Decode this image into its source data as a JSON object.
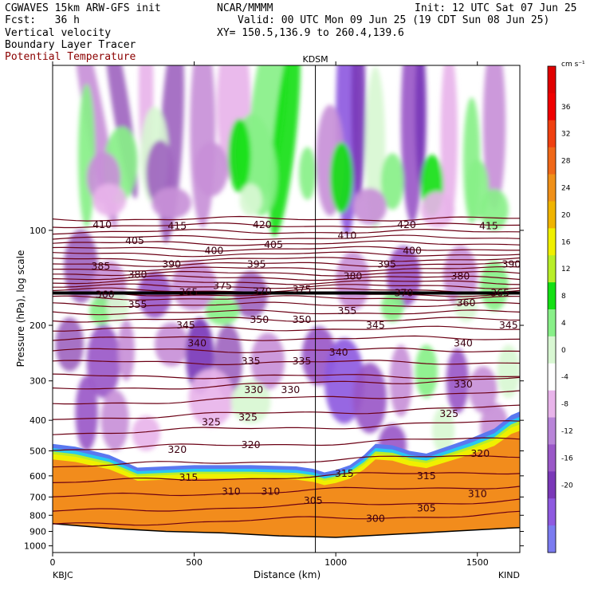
{
  "header": {
    "model": "CGWAVES 15km ARW-GFS init",
    "org": "NCAR/MMMM",
    "init": "Init: 12 UTC Sat 07 Jun 25",
    "fcst": "Fcst:   36 h",
    "valid": "Valid: 00 UTC Mon 09 Jun 25 (19 CDT Sun 08 Jun 25)",
    "field1": "Vertical velocity",
    "field2": "Boundary Layer Tracer",
    "field3": "Potential Temperature",
    "xy": "XY= 150.5,136.9 to 260.4,139.6"
  },
  "colors": {
    "theta": "#6b0014",
    "boundary": "#000000",
    "tracer": "#f28c1c"
  },
  "chart_data": {
    "type": "heatmap",
    "xlabel": "Distance (km)",
    "ylabel": "Pressure (hPa), log scale",
    "xlim": [
      0,
      1650
    ],
    "ylim": [
      1050,
      30
    ],
    "x_ticks": [
      0,
      500,
      1000,
      1500
    ],
    "y_ticks": [
      100,
      200,
      300,
      400,
      500,
      600,
      700,
      800,
      900,
      1000
    ],
    "y_scale": "log",
    "x_endpoints": {
      "left": "KBJC",
      "right": "KIND"
    },
    "marker": {
      "label": "KDSM",
      "x": 928
    },
    "colorbar": {
      "unit": "cm s⁻¹",
      "ticks": [
        36,
        32,
        28,
        24,
        20,
        16,
        12,
        8,
        4,
        0,
        -4,
        -8,
        -12,
        -16,
        -20
      ],
      "colors": [
        "#7b7bf0",
        "#8e5ae0",
        "#7a38b8",
        "#9a58c8",
        "#b884d8",
        "#e8b4ea",
        "#ffffff",
        "#d8f7d2",
        "#88f088",
        "#14e014",
        "#b8ee28",
        "#f0f000",
        "#f0b400",
        "#f09018",
        "#f06818",
        "#f04010",
        "#f00000",
        "#e00000"
      ]
    },
    "theta_contour_labels": [
      {
        "x": 175,
        "p": 96,
        "v": "410"
      },
      {
        "x": 440,
        "p": 97,
        "v": "415"
      },
      {
        "x": 740,
        "p": 96,
        "v": "420"
      },
      {
        "x": 1040,
        "p": 104,
        "v": "410"
      },
      {
        "x": 1250,
        "p": 96,
        "v": "420"
      },
      {
        "x": 1540,
        "p": 97,
        "v": "415"
      },
      {
        "x": 290,
        "p": 108,
        "v": "405"
      },
      {
        "x": 570,
        "p": 116,
        "v": "400"
      },
      {
        "x": 780,
        "p": 111,
        "v": "405"
      },
      {
        "x": 1270,
        "p": 116,
        "v": "400"
      },
      {
        "x": 170,
        "p": 130,
        "v": "385"
      },
      {
        "x": 420,
        "p": 128,
        "v": "390"
      },
      {
        "x": 720,
        "p": 128,
        "v": "395"
      },
      {
        "x": 1180,
        "p": 128,
        "v": "395"
      },
      {
        "x": 1620,
        "p": 128,
        "v": "390"
      },
      {
        "x": 300,
        "p": 138,
        "v": "380"
      },
      {
        "x": 1060,
        "p": 140,
        "v": "380"
      },
      {
        "x": 1440,
        "p": 140,
        "v": "380"
      },
      {
        "x": 600,
        "p": 150,
        "v": "375"
      },
      {
        "x": 740,
        "p": 156,
        "v": "370"
      },
      {
        "x": 880,
        "p": 154,
        "v": "375"
      },
      {
        "x": 1240,
        "p": 158,
        "v": "370"
      },
      {
        "x": 480,
        "p": 157,
        "v": "365"
      },
      {
        "x": 185,
        "p": 160,
        "v": "360"
      },
      {
        "x": 1460,
        "p": 170,
        "v": "360"
      },
      {
        "x": 1580,
        "p": 158,
        "v": "365"
      },
      {
        "x": 300,
        "p": 172,
        "v": "355"
      },
      {
        "x": 1040,
        "p": 180,
        "v": "355"
      },
      {
        "x": 730,
        "p": 192,
        "v": "350"
      },
      {
        "x": 880,
        "p": 192,
        "v": "350"
      },
      {
        "x": 470,
        "p": 200,
        "v": "345"
      },
      {
        "x": 1140,
        "p": 200,
        "v": "345"
      },
      {
        "x": 1610,
        "p": 200,
        "v": "345"
      },
      {
        "x": 510,
        "p": 228,
        "v": "340"
      },
      {
        "x": 1010,
        "p": 244,
        "v": "340"
      },
      {
        "x": 1450,
        "p": 228,
        "v": "340"
      },
      {
        "x": 700,
        "p": 260,
        "v": "335"
      },
      {
        "x": 880,
        "p": 260,
        "v": "335"
      },
      {
        "x": 710,
        "p": 320,
        "v": "330"
      },
      {
        "x": 840,
        "p": 320,
        "v": "330"
      },
      {
        "x": 1450,
        "p": 308,
        "v": "330"
      },
      {
        "x": 560,
        "p": 405,
        "v": "325"
      },
      {
        "x": 690,
        "p": 392,
        "v": "325"
      },
      {
        "x": 1400,
        "p": 382,
        "v": "325"
      },
      {
        "x": 440,
        "p": 495,
        "v": "320"
      },
      {
        "x": 700,
        "p": 478,
        "v": "320"
      },
      {
        "x": 1510,
        "p": 510,
        "v": "320"
      },
      {
        "x": 480,
        "p": 608,
        "v": "315"
      },
      {
        "x": 1030,
        "p": 590,
        "v": "315"
      },
      {
        "x": 1320,
        "p": 600,
        "v": "315"
      },
      {
        "x": 630,
        "p": 672,
        "v": "310"
      },
      {
        "x": 770,
        "p": 672,
        "v": "310"
      },
      {
        "x": 1500,
        "p": 685,
        "v": "310"
      },
      {
        "x": 920,
        "p": 720,
        "v": "305"
      },
      {
        "x": 1320,
        "p": 760,
        "v": "305"
      },
      {
        "x": 1140,
        "p": 820,
        "v": "300"
      }
    ]
  }
}
